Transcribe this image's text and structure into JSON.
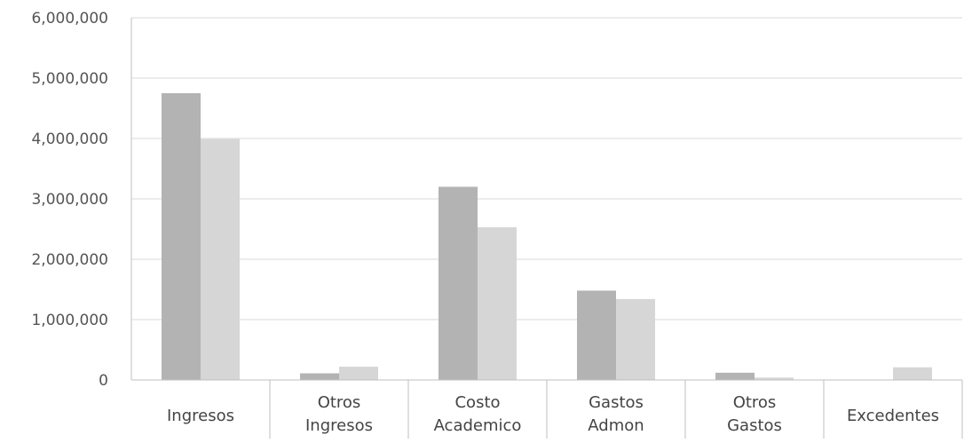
{
  "chart_data": {
    "type": "bar",
    "title": "",
    "xlabel": "",
    "ylabel": "",
    "categories": [
      [
        "Ingresos"
      ],
      [
        "Otros",
        "Ingresos"
      ],
      [
        "Costo",
        "Academico"
      ],
      [
        "Gastos",
        "Admon"
      ],
      [
        "Otros",
        "Gastos"
      ],
      [
        "Excedentes"
      ]
    ],
    "series": [
      {
        "values": [
          4750000,
          110000,
          3200000,
          1480000,
          120000,
          0
        ],
        "color": "#b3b3b3"
      },
      {
        "values": [
          3990000,
          220000,
          2530000,
          1340000,
          40000,
          210000
        ],
        "color": "#d6d6d6"
      }
    ],
    "ylim": [
      0,
      6000000
    ],
    "yticks": [
      "0",
      "1,000,000",
      "2,000,000",
      "3,000,000",
      "4,000,000",
      "5,000,000",
      "6,000,000"
    ],
    "ytick_values": [
      0,
      1000000,
      2000000,
      3000000,
      4000000,
      5000000,
      6000000
    ],
    "grid": true,
    "legend": "none"
  }
}
